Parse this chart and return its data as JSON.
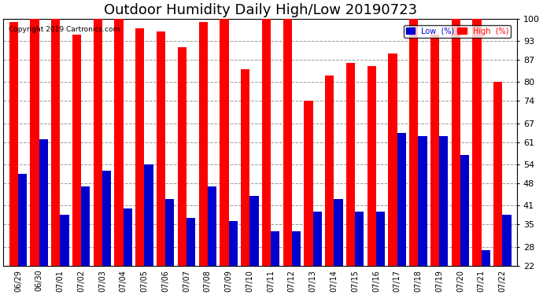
{
  "title": "Outdoor Humidity Daily High/Low 20190723",
  "copyright": "Copyright 2019 Cartronics.com",
  "labels": [
    "06/29",
    "06/30",
    "07/01",
    "07/02",
    "07/03",
    "07/04",
    "07/05",
    "07/06",
    "07/07",
    "07/08",
    "07/09",
    "07/10",
    "07/11",
    "07/12",
    "07/13",
    "07/14",
    "07/15",
    "07/16",
    "07/17",
    "07/18",
    "07/19",
    "07/20",
    "07/21",
    "07/22"
  ],
  "high": [
    99,
    100,
    100,
    95,
    100,
    100,
    97,
    96,
    91,
    99,
    100,
    84,
    100,
    100,
    74,
    82,
    86,
    85,
    89,
    100,
    95,
    100,
    100,
    80
  ],
  "low": [
    51,
    62,
    38,
    47,
    52,
    40,
    54,
    43,
    37,
    47,
    36,
    44,
    33,
    33,
    39,
    43,
    39,
    39,
    64,
    63,
    63,
    57,
    27,
    38
  ],
  "bar_width": 0.42,
  "ylim_min": 22,
  "ylim_max": 100,
  "yticks": [
    22,
    28,
    35,
    41,
    48,
    54,
    61,
    67,
    74,
    80,
    87,
    93,
    100
  ],
  "high_color": "#ff0000",
  "low_color": "#0000cc",
  "bg_color": "#ffffff",
  "grid_color": "#999999",
  "title_fontsize": 13,
  "tick_fontsize": 8,
  "xlabel_fontsize": 7,
  "legend_low_label": "Low  (%)",
  "legend_high_label": "High  (%)"
}
